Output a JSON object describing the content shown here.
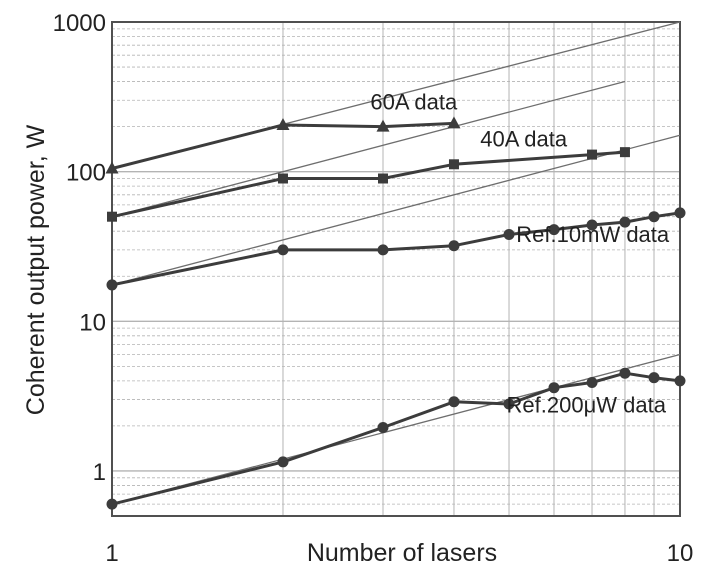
{
  "chart_data": {
    "type": "line",
    "title": "",
    "xlabel": "Number of lasers",
    "ylabel": "Coherent output power, W",
    "xscale": "log",
    "yscale": "log",
    "xlim": [
      1,
      10
    ],
    "ylim": [
      0.5,
      1000
    ],
    "x_ticks": [
      "1",
      "10"
    ],
    "y_ticks": [
      "1",
      "10",
      "100",
      "1000"
    ],
    "grid": true,
    "colors": {
      "data": "#3c3c3c",
      "ideal": "#6e6e6e",
      "grid": "#b4b4b4",
      "frame": "#505050"
    },
    "series": [
      {
        "name": "60A data",
        "marker": "triangle",
        "x": [
          1,
          2,
          3,
          4
        ],
        "y": [
          105,
          205,
          200,
          210
        ],
        "ideal": {
          "x": [
            1,
            10
          ],
          "y": [
            105,
            1000
          ]
        }
      },
      {
        "name": "40A data",
        "marker": "square",
        "x": [
          1,
          2,
          3,
          4,
          7,
          8
        ],
        "y": [
          50,
          90,
          90,
          112,
          130,
          135
        ],
        "ideal": {
          "x": [
            1,
            8
          ],
          "y": [
            50,
            400
          ]
        }
      },
      {
        "name": "Ref.10mW data",
        "marker": "circle",
        "x": [
          1,
          2,
          3,
          4,
          5,
          6,
          7,
          8,
          9,
          10
        ],
        "y": [
          17.5,
          30,
          30,
          32,
          38,
          41,
          44,
          46,
          50,
          53
        ],
        "ideal": {
          "x": [
            1,
            10
          ],
          "y": [
            17.5,
            175
          ]
        }
      },
      {
        "name": "Ref.200μW data",
        "marker": "circle",
        "x": [
          1,
          2,
          3,
          4,
          5,
          6,
          7,
          8,
          9,
          10
        ],
        "y": [
          0.6,
          1.15,
          1.95,
          2.9,
          2.8,
          3.6,
          3.9,
          4.5,
          4.2,
          4.0
        ],
        "ideal": {
          "x": [
            1,
            10
          ],
          "y": [
            0.6,
            6.0
          ]
        }
      }
    ]
  }
}
